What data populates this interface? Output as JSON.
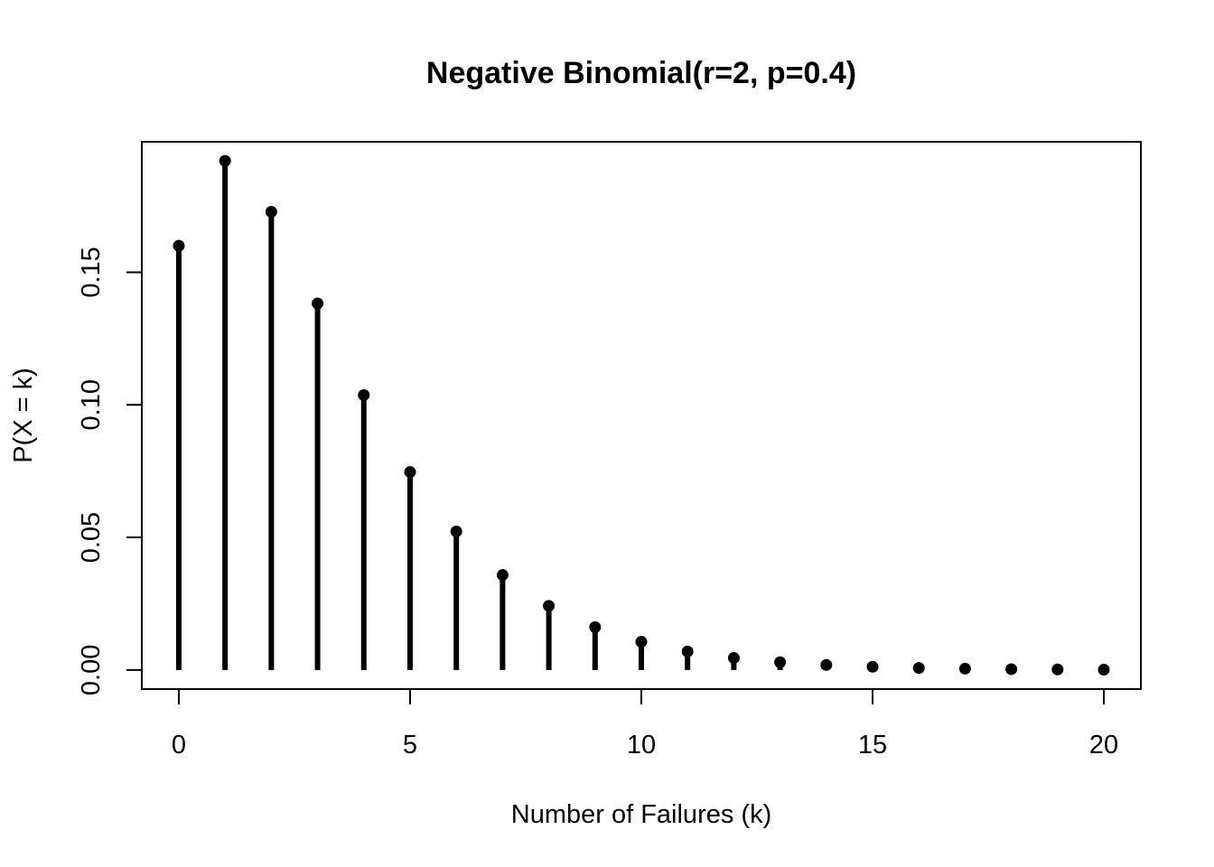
{
  "chart_data": {
    "type": "lollipop",
    "title": "Negative Binomial(r=2, p=0.4)",
    "xlabel": "Number of Failures (k)",
    "ylabel": "P(X = k)",
    "x": [
      0,
      1,
      2,
      3,
      4,
      5,
      6,
      7,
      8,
      9,
      10,
      11,
      12,
      13,
      14,
      15,
      16,
      17,
      18,
      19,
      20
    ],
    "values": [
      0.16,
      0.192,
      0.1728,
      0.13824,
      0.10368,
      0.07465,
      0.05225,
      0.03583,
      0.02419,
      0.01612,
      0.01064,
      0.00697,
      0.00453,
      0.00293,
      0.00189,
      0.00121,
      0.00077,
      0.00049,
      0.00031,
      0.0002,
      0.00012
    ],
    "xlim": [
      -0.8,
      20.8
    ],
    "ylim": [
      -0.0072,
      0.1992
    ],
    "x_ticks": [
      0,
      5,
      10,
      15,
      20
    ],
    "x_tick_labels": [
      "0",
      "5",
      "10",
      "15",
      "20"
    ],
    "y_ticks": [
      0,
      0.05,
      0.1,
      0.15
    ],
    "y_tick_labels": [
      "0.00",
      "0.05",
      "0.10",
      "0.15"
    ],
    "grid": false,
    "color": "#000000"
  }
}
